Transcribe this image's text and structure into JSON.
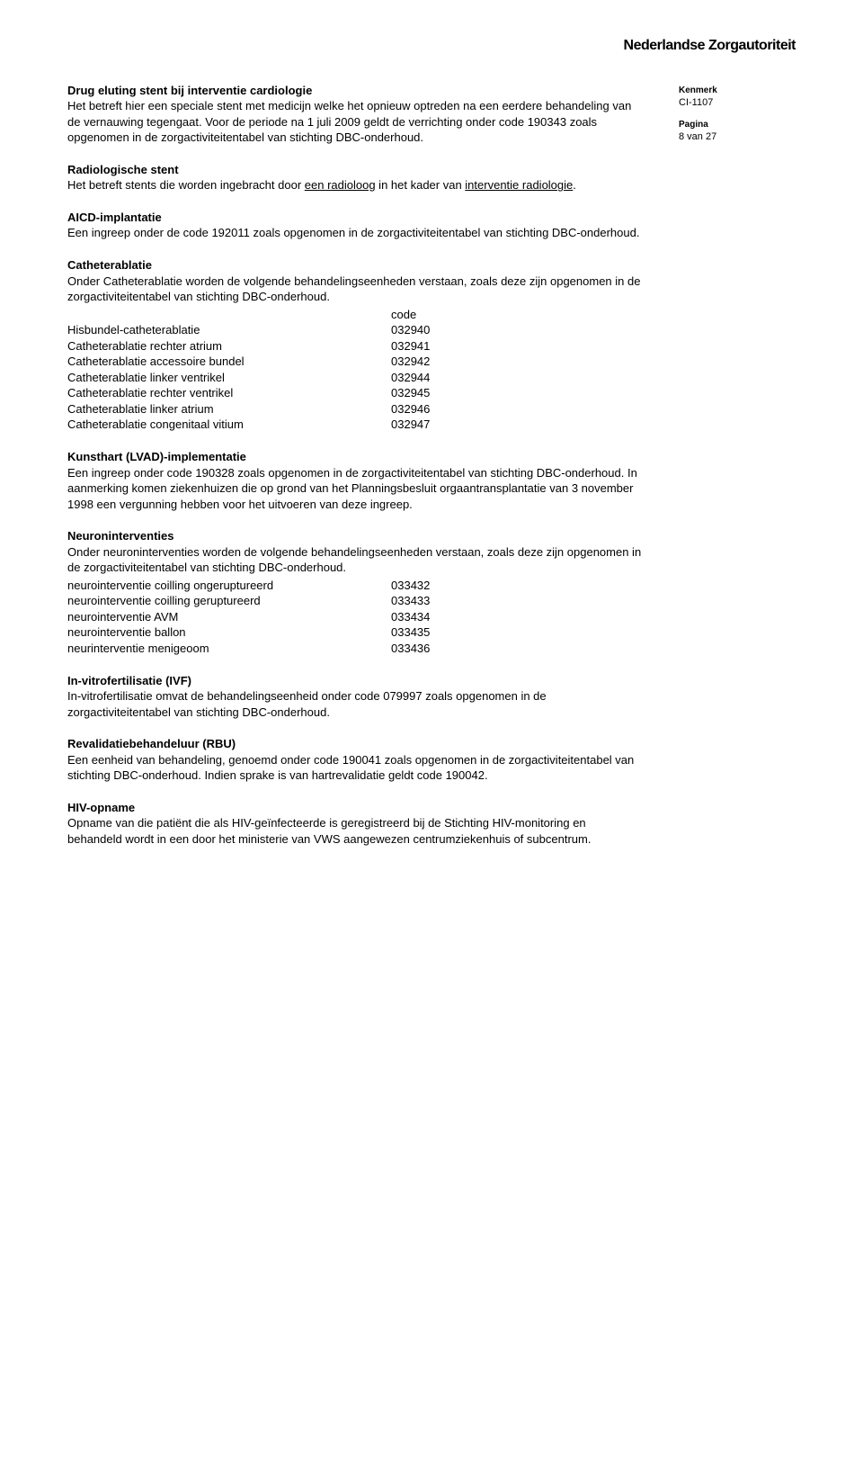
{
  "logo_text": "Nederlandse Zorgautoriteit",
  "sidebar": {
    "kenmerk_label": "Kenmerk",
    "kenmerk_value": "CI-1107",
    "pagina_label": "Pagina",
    "pagina_value": "8 van 27"
  },
  "sections": {
    "drug_eluting": {
      "title": "Drug eluting stent bij interventie cardiologie",
      "body": "Het betreft hier een speciale stent met medicijn welke het opnieuw optreden na een eerdere behandeling van de vernauwing tegengaat. Voor de periode na 1 juli 2009 geldt de verrichting onder code 190343 zoals opgenomen in de  zorgactiviteitentabel van stichting DBC-onderhoud."
    },
    "radiologische": {
      "title": "Radiologische stent",
      "pre": "Het betreft stents die worden ingebracht door ",
      "u1": "een radioloog",
      "mid": " in het kader van ",
      "u2": "interventie radiologie",
      "suffix": "."
    },
    "aicd": {
      "title": "AICD-implantatie",
      "body": "Een ingreep onder de code 192011 zoals opgenomen in de zorgactiviteitentabel van stichting DBC-onderhoud."
    },
    "catheter": {
      "title": "Catheterablatie",
      "intro": "Onder Catheterablatie worden de volgende behandelingseenheden verstaan, zoals deze zijn opgenomen in de zorgactiviteitentabel van stichting DBC-onderhoud.",
      "code_header": "code",
      "rows": [
        {
          "name": "Hisbundel-catheterablatie",
          "code": "032940"
        },
        {
          "name": "Catheterablatie rechter atrium",
          "code": "032941"
        },
        {
          "name": "Catheterablatie accessoire bundel",
          "code": "032942"
        },
        {
          "name": "Catheterablatie linker ventrikel",
          "code": "032944"
        },
        {
          "name": "Catheterablatie rechter ventrikel",
          "code": "032945"
        },
        {
          "name": "Catheterablatie linker atrium",
          "code": "032946"
        },
        {
          "name": "Catheterablatie congenitaal vitium",
          "code": "032947"
        }
      ]
    },
    "kunsthart": {
      "title": "Kunsthart (LVAD)-implementatie",
      "body": "Een ingreep onder code 190328 zoals opgenomen in de zorgactiviteitentabel van stichting DBC-onderhoud. In aanmerking komen ziekenhuizen die op grond van het Planningsbesluit orgaantransplantatie van 3 november 1998 een vergunning hebben voor het uitvoeren van deze ingreep."
    },
    "neuro": {
      "title": "Neuroninterventies",
      "intro": "Onder neuroninterventies worden de volgende behandelingseenheden verstaan, zoals deze zijn opgenomen in de zorgactiviteitentabel van stichting DBC-onderhoud.",
      "rows": [
        {
          "name": "neurointerventie coilling ongeruptureerd",
          "code": "033432"
        },
        {
          "name": "neurointerventie coilling geruptureerd",
          "code": "033433"
        },
        {
          "name": "neurointerventie AVM",
          "code": "033434"
        },
        {
          "name": "neurointerventie ballon",
          "code": "033435"
        },
        {
          "name": "neurinterventie menigeoom",
          "code": "033436"
        }
      ]
    },
    "ivf": {
      "title": "In-vitrofertilisatie (IVF)",
      "body": "In-vitrofertilisatie omvat de behandelingseenheid onder code 079997 zoals opgenomen in de zorgactiviteitentabel van stichting DBC-onderhoud."
    },
    "rbu": {
      "title": "Revalidatiebehandeluur (RBU)",
      "body": "Een eenheid van behandeling, genoemd onder code 190041 zoals opgenomen in de zorgactiviteitentabel van stichting DBC-onderhoud. Indien sprake is van hartrevalidatie geldt code 190042."
    },
    "hiv": {
      "title": "HIV-opname",
      "body": "Opname van die patiënt die als HIV-geïnfecteerde is geregistreerd bij de Stichting HIV-monitoring en behandeld wordt in een door het ministerie van VWS aangewezen centrumziekenhuis of subcentrum."
    }
  }
}
